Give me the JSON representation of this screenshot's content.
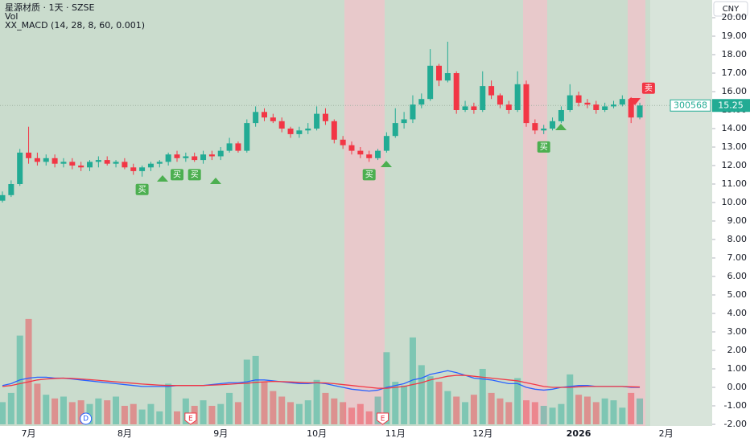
{
  "chart_data": {
    "type": "candlestick",
    "title": "星源材质 · 1天 · SZSE",
    "indicators": [
      "Vol",
      "XX_MACD (14, 28, 8, 60, 0.001)"
    ],
    "currency": "CNY",
    "symbol": "300568",
    "last_price": {
      "value": 15.25,
      "label": "15.25"
    },
    "categories": [
      null,
      null,
      null,
      "7月",
      null,
      null,
      null,
      null,
      null,
      null,
      null,
      null,
      null,
      null,
      "8月",
      null,
      null,
      null,
      null,
      null,
      null,
      null,
      null,
      null,
      null,
      "9月",
      null,
      null,
      null,
      null,
      null,
      null,
      null,
      null,
      null,
      null,
      "10月",
      null,
      null,
      null,
      null,
      null,
      null,
      null,
      null,
      "11月",
      null,
      null,
      null,
      null,
      null,
      null,
      null,
      null,
      null,
      "12月",
      null,
      null,
      null,
      null,
      null,
      null,
      null,
      null,
      null,
      null,
      "2026",
      null,
      null,
      null,
      null,
      null,
      null,
      null
    ],
    "extra_x_labels": [
      "2月"
    ],
    "open": [
      10.1,
      10.4,
      11.0,
      12.7,
      12.4,
      12.2,
      12.4,
      12.1,
      12.2,
      12.0,
      11.9,
      12.2,
      12.3,
      12.1,
      12.2,
      11.9,
      11.7,
      11.9,
      12.1,
      12.2,
      12.6,
      12.4,
      12.5,
      12.3,
      12.6,
      12.5,
      12.8,
      13.2,
      12.8,
      14.3,
      14.9,
      14.6,
      14.4,
      14.0,
      13.7,
      13.9,
      14.0,
      14.8,
      14.4,
      13.4,
      13.1,
      12.8,
      12.6,
      12.4,
      12.8,
      13.6,
      14.3,
      14.5,
      15.3,
      15.6,
      17.4,
      16.6,
      17.0,
      15.0,
      15.2,
      15.0,
      16.3,
      15.8,
      15.3,
      15.0,
      16.4,
      14.3,
      13.9,
      14.0,
      14.4,
      15.0,
      15.8,
      15.4,
      15.3,
      15.0,
      15.2,
      15.3,
      15.6,
      14.6
    ],
    "high": [
      10.6,
      11.2,
      12.9,
      14.1,
      12.7,
      12.6,
      12.6,
      12.4,
      12.4,
      12.2,
      12.3,
      12.5,
      12.5,
      12.3,
      12.4,
      12.1,
      12.0,
      12.2,
      12.3,
      12.7,
      12.8,
      12.7,
      12.7,
      12.8,
      12.8,
      13.0,
      13.5,
      13.3,
      14.5,
      15.2,
      15.1,
      14.8,
      14.6,
      14.1,
      14.1,
      14.3,
      15.2,
      15.1,
      14.5,
      13.6,
      13.3,
      13.0,
      12.8,
      12.9,
      13.8,
      15.1,
      14.9,
      15.8,
      15.9,
      18.3,
      17.5,
      18.7,
      17.1,
      15.5,
      15.4,
      17.1,
      16.6,
      15.9,
      15.5,
      17.1,
      16.6,
      14.5,
      14.2,
      14.6,
      15.2,
      16.4,
      16.0,
      15.6,
      15.5,
      15.4,
      15.5,
      15.8,
      15.7,
      15.4
    ],
    "low": [
      10.0,
      10.3,
      10.9,
      12.1,
      12.0,
      12.0,
      11.9,
      11.9,
      11.8,
      11.7,
      11.7,
      11.9,
      12.0,
      11.9,
      11.8,
      11.5,
      11.4,
      11.7,
      11.9,
      12.0,
      12.2,
      12.2,
      12.2,
      12.1,
      12.3,
      12.3,
      12.7,
      12.7,
      12.7,
      14.1,
      14.4,
      14.3,
      13.8,
      13.5,
      13.5,
      13.7,
      13.9,
      14.2,
      13.2,
      12.9,
      12.6,
      12.4,
      12.2,
      12.3,
      12.7,
      13.5,
      14.0,
      14.3,
      15.1,
      15.5,
      16.3,
      16.5,
      14.8,
      14.9,
      14.8,
      14.9,
      15.6,
      15.1,
      14.8,
      14.9,
      14.1,
      13.7,
      13.7,
      13.9,
      14.3,
      14.9,
      15.2,
      15.1,
      14.8,
      14.9,
      15.1,
      15.2,
      14.3,
      14.5
    ],
    "close": [
      10.4,
      11.0,
      12.7,
      12.4,
      12.2,
      12.4,
      12.1,
      12.2,
      12.0,
      11.9,
      12.2,
      12.3,
      12.1,
      12.2,
      11.9,
      11.7,
      11.9,
      12.1,
      12.2,
      12.6,
      12.4,
      12.5,
      12.3,
      12.6,
      12.5,
      12.8,
      13.2,
      12.8,
      14.3,
      14.9,
      14.6,
      14.4,
      14.0,
      13.7,
      13.9,
      14.0,
      14.8,
      14.4,
      13.4,
      13.1,
      12.8,
      12.6,
      12.4,
      12.8,
      13.6,
      14.3,
      14.5,
      15.3,
      15.6,
      17.4,
      16.6,
      17.0,
      15.0,
      15.2,
      15.0,
      16.3,
      15.8,
      15.3,
      15.0,
      16.4,
      14.3,
      13.9,
      14.0,
      14.4,
      15.0,
      15.8,
      15.4,
      15.3,
      15.0,
      15.2,
      15.3,
      15.6,
      14.6,
      15.25
    ],
    "volume": [
      -0.8,
      -0.3,
      2.8,
      3.7,
      0.2,
      -0.4,
      -0.6,
      -0.5,
      -0.8,
      -0.7,
      -0.9,
      -0.6,
      -0.7,
      -0.5,
      -1.0,
      -0.9,
      -1.2,
      -0.9,
      -1.3,
      0.2,
      -1.3,
      -0.6,
      -1.0,
      -0.7,
      -1.0,
      -0.9,
      -0.3,
      -0.8,
      1.5,
      1.7,
      0.3,
      -0.2,
      -0.5,
      -0.8,
      -0.9,
      -0.7,
      0.4,
      -0.3,
      -0.6,
      -0.8,
      -1.1,
      -0.9,
      -1.3,
      -0.5,
      1.9,
      0.3,
      0.1,
      2.7,
      1.2,
      0.6,
      0.3,
      -0.2,
      -0.5,
      -0.8,
      -0.4,
      1.0,
      -0.3,
      -0.6,
      -0.8,
      0.5,
      -0.7,
      -0.8,
      -1.0,
      -1.1,
      -0.9,
      0.7,
      -0.4,
      -0.5,
      -0.8,
      -0.6,
      -0.7,
      -1.1,
      -0.3,
      -0.6
    ],
    "series": [
      {
        "name": "MACD",
        "color": "#2962ff",
        "values": [
          0.1,
          0.2,
          0.4,
          0.5,
          0.55,
          0.55,
          0.5,
          0.5,
          0.45,
          0.4,
          0.35,
          0.3,
          0.25,
          0.2,
          0.15,
          0.1,
          0.05,
          0.05,
          0.05,
          0.05,
          0.1,
          0.1,
          0.1,
          0.1,
          0.15,
          0.2,
          0.25,
          0.25,
          0.3,
          0.4,
          0.4,
          0.35,
          0.3,
          0.25,
          0.2,
          0.2,
          0.25,
          0.2,
          0.1,
          0,
          -0.1,
          -0.15,
          -0.2,
          -0.15,
          0,
          0.1,
          0.2,
          0.4,
          0.5,
          0.7,
          0.8,
          0.9,
          0.8,
          0.65,
          0.5,
          0.45,
          0.4,
          0.3,
          0.2,
          0.2,
          0,
          -0.1,
          -0.15,
          -0.1,
          0,
          0.05,
          0.1,
          0.1,
          0.05,
          0.05,
          0.05,
          0.05,
          0,
          0
        ]
      },
      {
        "name": "Signal",
        "color": "#f23645",
        "values": [
          0.05,
          0.1,
          0.2,
          0.3,
          0.4,
          0.45,
          0.48,
          0.5,
          0.48,
          0.45,
          0.42,
          0.38,
          0.34,
          0.3,
          0.26,
          0.22,
          0.18,
          0.15,
          0.12,
          0.1,
          0.1,
          0.1,
          0.1,
          0.1,
          0.12,
          0.14,
          0.17,
          0.2,
          0.22,
          0.27,
          0.3,
          0.32,
          0.31,
          0.29,
          0.27,
          0.25,
          0.25,
          0.24,
          0.2,
          0.15,
          0.1,
          0.05,
          0,
          -0.05,
          -0.05,
          0,
          0.05,
          0.15,
          0.25,
          0.4,
          0.5,
          0.6,
          0.65,
          0.65,
          0.6,
          0.55,
          0.5,
          0.45,
          0.4,
          0.35,
          0.25,
          0.15,
          0.05,
          0,
          0,
          0,
          0.03,
          0.05,
          0.05,
          0.05,
          0.05,
          0.05,
          0.03,
          0.02
        ]
      }
    ],
    "signals": [
      {
        "label": "买",
        "candle": 16
      },
      {
        "label": "买",
        "candle": 20
      },
      {
        "label": "买",
        "candle": 22
      },
      {
        "label": "买",
        "candle": 42
      },
      {
        "label": "买",
        "candle": 62
      },
      {
        "label": "卖",
        "candle": 74
      }
    ],
    "events": [
      {
        "label": "D",
        "candle": 9
      },
      {
        "label": "E",
        "candle": 21
      },
      {
        "label": "E",
        "candle": 43
      }
    ],
    "colors": {
      "up": "#22ab94",
      "down": "#f23645"
    },
    "ylim": [
      -2,
      20
    ],
    "yticks": [
      {
        "value": 20,
        "label": "20.00"
      },
      {
        "value": 19,
        "label": "19.00"
      },
      {
        "value": 18,
        "label": "18.00"
      },
      {
        "value": 17,
        "label": "17.00"
      },
      {
        "value": 16,
        "label": "16.00"
      },
      {
        "value": 15,
        "label": "15.00"
      },
      {
        "value": 14,
        "label": "14.00"
      },
      {
        "value": 13,
        "label": "13.00"
      },
      {
        "value": 12,
        "label": "12.00"
      },
      {
        "value": 11,
        "label": "11.00"
      },
      {
        "value": 10,
        "label": "10.00"
      },
      {
        "value": 9,
        "label": "9.00"
      },
      {
        "value": 8,
        "label": "8.00"
      },
      {
        "value": 7,
        "label": "7.00"
      },
      {
        "value": 6,
        "label": "6.00"
      },
      {
        "value": 5,
        "label": "5.00"
      },
      {
        "value": 4,
        "label": "4.00"
      },
      {
        "value": 3,
        "label": "3.00"
      },
      {
        "value": 2,
        "label": "2.00"
      },
      {
        "value": 1,
        "label": "1.00"
      },
      {
        "value": 0,
        "label": "0.00"
      },
      {
        "value": -1,
        "label": "-1.00"
      },
      {
        "value": -2,
        "label": "-2.00"
      }
    ]
  }
}
